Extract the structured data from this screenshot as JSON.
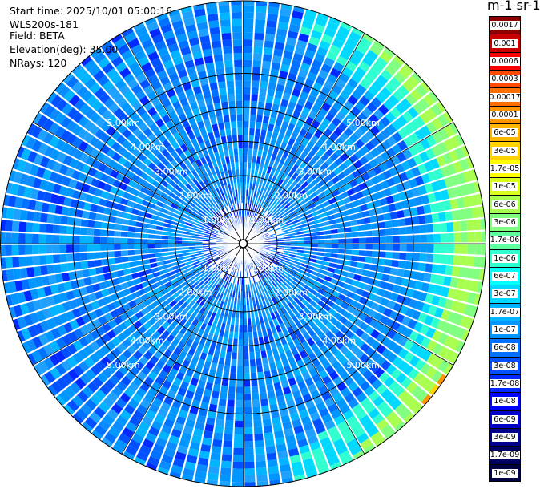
{
  "header": {
    "start_time": "Start time: 2025/10/01 05:00:16",
    "instrument": "WLS200s-181",
    "field": "Field: BETA",
    "elevation": "Elevation(deg): 35.00",
    "nrays": "NRays: 120"
  },
  "colorbar": {
    "title": "m-1 sr-1",
    "labels": [
      "0.0017",
      "0.001",
      "0.0006",
      "0.0003",
      "0.00017",
      "0.0001",
      "6e-05",
      "3e-05",
      "1.7e-05",
      "1e-05",
      "6e-06",
      "3e-06",
      "1.7e-06",
      "1e-06",
      "6e-07",
      "3e-07",
      "1.7e-07",
      "1e-07",
      "6e-08",
      "3e-08",
      "1.7e-08",
      "1e-08",
      "6e-09",
      "3e-09",
      "1.7e-09",
      "1e-09"
    ],
    "colors": [
      "#8c0000",
      "#c80000",
      "#ff0000",
      "#ff4a00",
      "#ff6e00",
      "#ff9600",
      "#ffb400",
      "#ffd200",
      "#ffff00",
      "#d8ff1e",
      "#a8ff50",
      "#80ff80",
      "#60ffa0",
      "#30ffd0",
      "#00ffff",
      "#00d8ff",
      "#00b4ff",
      "#0096ff",
      "#0072ff",
      "#0050ff",
      "#0028ff",
      "#0000ff",
      "#0000c8",
      "#00008c",
      "#000064",
      "#000046"
    ]
  },
  "chart_data": {
    "type": "heatmap",
    "title": "",
    "projection": "polar PPI",
    "field": "BETA",
    "nrays": 120,
    "range_rings_km": [
      1,
      2,
      3,
      4,
      5
    ],
    "ring_labels": [
      "1.00km",
      "2.00km",
      "3.00km",
      "4.00km",
      "5.00km"
    ],
    "max_range_km": 6.8,
    "typical_value_range": [
      "1e-08",
      "6e-08"
    ],
    "notes": [
      "Near-range (<1 km): mixed 1e-08 to 1e-09 (blue to dark blue)",
      "Mid range (1-5 km): predominantly 3e-08 to 6e-08 (sky blue)",
      "Far range east/northeast edge: elevated values up to 1.7e-07 - 1e-05 (cyan, green, yellow, orange)"
    ]
  }
}
